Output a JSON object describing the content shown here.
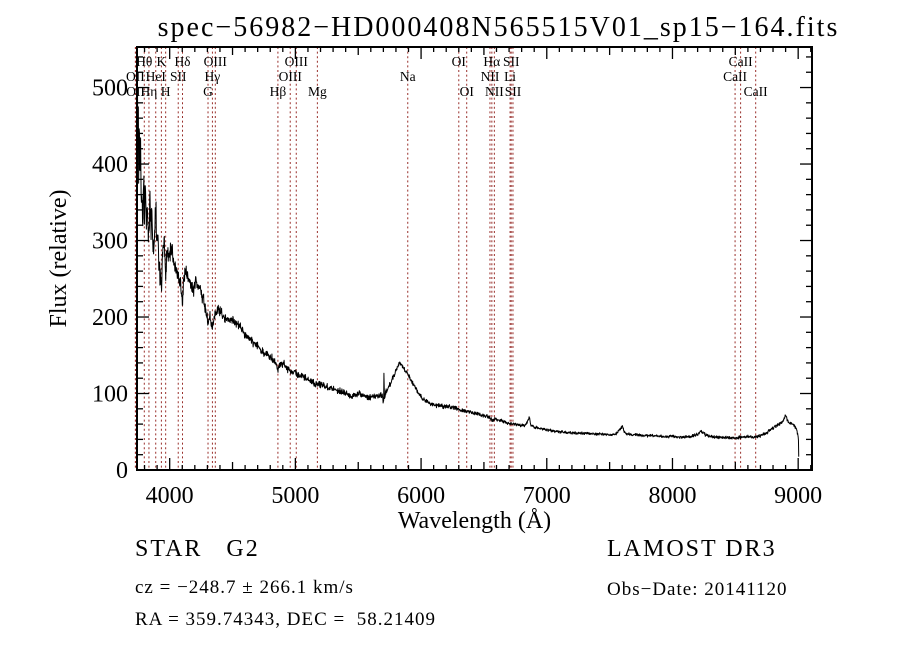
{
  "title": "spec−56982−HD000408N565515V01_sp15−164.fits",
  "footer": {
    "left": {
      "class_line": "STAR   G2",
      "cz_line": "cz = −248.7 ± 266.1 km/s",
      "radec_line": "RA = 359.74343, DEC =  58.21409"
    },
    "right": {
      "survey": "LAMOST DR3",
      "obs_date": "Obs−Date: 20141120"
    }
  },
  "chart_data": {
    "type": "line",
    "title": "spec−56982−HD000408N565515V01_sp15−164.fits",
    "xlabel": "Wavelength (Å)",
    "ylabel": "Flux (relative)",
    "xlim": [
      3740,
      9110
    ],
    "ylim": [
      0,
      553
    ],
    "xticks": [
      4000,
      5000,
      6000,
      7000,
      8000,
      9000
    ],
    "yticks": [
      0,
      100,
      200,
      300,
      400,
      500
    ],
    "x_minor_step": 100,
    "y_minor_step": 20,
    "grid": false,
    "colors": {
      "curve": "#000000",
      "line_marker": "#992f2b",
      "frame": "#000000"
    },
    "spectral_lines": [
      {
        "label": "Hθ",
        "wavelength": 3798,
        "row": 1
      },
      {
        "label": "K",
        "wavelength": 3934,
        "row": 1
      },
      {
        "label": "Hδ",
        "wavelength": 4102,
        "row": 1
      },
      {
        "label": "OIII",
        "wavelength": 4363,
        "row": 1
      },
      {
        "label": "OIII",
        "wavelength": 5007,
        "row": 1
      },
      {
        "label": "OI",
        "wavelength": 6300,
        "row": 1
      },
      {
        "label": "Hα",
        "wavelength": 6563,
        "row": 1
      },
      {
        "label": "SII",
        "wavelength": 6717,
        "row": 1
      },
      {
        "label": "CaII",
        "wavelength": 8542,
        "row": 1
      },
      {
        "label": "OII",
        "wavelength": 3727,
        "row": 2
      },
      {
        "label": "HeI",
        "wavelength": 3889,
        "row": 2
      },
      {
        "label": "SII",
        "wavelength": 4068,
        "row": 2
      },
      {
        "label": "Hγ",
        "wavelength": 4340,
        "row": 2
      },
      {
        "label": "OIII",
        "wavelength": 4959,
        "row": 2
      },
      {
        "label": "Na",
        "wavelength": 5894,
        "row": 2
      },
      {
        "label": "NII",
        "wavelength": 6548,
        "row": 2
      },
      {
        "label": "Li",
        "wavelength": 6708,
        "row": 2
      },
      {
        "label": "CaII",
        "wavelength": 8498,
        "row": 2
      },
      {
        "label": "OII",
        "wavelength": 3729,
        "row": 3
      },
      {
        "label": "Hη",
        "wavelength": 3835,
        "row": 3
      },
      {
        "label": "H",
        "wavelength": 3968,
        "row": 3
      },
      {
        "label": "G",
        "wavelength": 4305,
        "row": 3
      },
      {
        "label": "Hβ",
        "wavelength": 4861,
        "row": 3
      },
      {
        "label": "Mg",
        "wavelength": 5175,
        "row": 3
      },
      {
        "label": "OI",
        "wavelength": 6363,
        "row": 3
      },
      {
        "label": "NII",
        "wavelength": 6583,
        "row": 3
      },
      {
        "label": "SII",
        "wavelength": 6731,
        "row": 3
      },
      {
        "label": "CaII",
        "wavelength": 8662,
        "row": 3
      }
    ],
    "spectrum": {
      "anchors": [
        [
          3742,
          210
        ],
        [
          3744,
          480
        ],
        [
          3747,
          420
        ],
        [
          3750,
          505
        ],
        [
          3753,
          380
        ],
        [
          3757,
          450
        ],
        [
          3762,
          400
        ],
        [
          3768,
          435
        ],
        [
          3774,
          350
        ],
        [
          3780,
          365
        ],
        [
          3786,
          340
        ],
        [
          3792,
          380
        ],
        [
          3798,
          330
        ],
        [
          3805,
          395
        ],
        [
          3812,
          330
        ],
        [
          3820,
          345
        ],
        [
          3828,
          310
        ],
        [
          3835,
          295
        ],
        [
          3842,
          365
        ],
        [
          3850,
          320
        ],
        [
          3858,
          340
        ],
        [
          3866,
          300
        ],
        [
          3874,
          285
        ],
        [
          3882,
          320
        ],
        [
          3890,
          340
        ],
        [
          3898,
          300
        ],
        [
          3906,
          315
        ],
        [
          3914,
          270
        ],
        [
          3922,
          255
        ],
        [
          3934,
          240
        ],
        [
          3945,
          290
        ],
        [
          3956,
          305
        ],
        [
          3968,
          250
        ],
        [
          3980,
          285
        ],
        [
          3992,
          275
        ],
        [
          4005,
          285
        ],
        [
          4020,
          290
        ],
        [
          4035,
          270
        ],
        [
          4050,
          262
        ],
        [
          4065,
          255
        ],
        [
          4080,
          248
        ],
        [
          4102,
          222
        ],
        [
          4115,
          255
        ],
        [
          4130,
          262
        ],
        [
          4150,
          252
        ],
        [
          4170,
          240
        ],
        [
          4190,
          232
        ],
        [
          4210,
          248
        ],
        [
          4230,
          242
        ],
        [
          4250,
          232
        ],
        [
          4270,
          222
        ],
        [
          4290,
          205
        ],
        [
          4305,
          192
        ],
        [
          4320,
          200
        ],
        [
          4340,
          183
        ],
        [
          4360,
          205
        ],
        [
          4380,
          212
        ],
        [
          4400,
          208
        ],
        [
          4425,
          202
        ],
        [
          4450,
          198
        ],
        [
          4475,
          192
        ],
        [
          4500,
          198
        ],
        [
          4525,
          192
        ],
        [
          4550,
          188
        ],
        [
          4575,
          183
        ],
        [
          4600,
          178
        ],
        [
          4630,
          172
        ],
        [
          4660,
          168
        ],
        [
          4690,
          163
        ],
        [
          4720,
          158
        ],
        [
          4750,
          153
        ],
        [
          4780,
          150
        ],
        [
          4810,
          148
        ],
        [
          4835,
          143
        ],
        [
          4861,
          132
        ],
        [
          4885,
          140
        ],
        [
          4910,
          138
        ],
        [
          4935,
          133
        ],
        [
          4960,
          130
        ],
        [
          4985,
          127
        ],
        [
          5010,
          126
        ],
        [
          5040,
          123
        ],
        [
          5070,
          121
        ],
        [
          5100,
          118
        ],
        [
          5130,
          116
        ],
        [
          5160,
          113
        ],
        [
          5175,
          112
        ],
        [
          5210,
          112
        ],
        [
          5240,
          110
        ],
        [
          5270,
          108
        ],
        [
          5300,
          107
        ],
        [
          5330,
          105
        ],
        [
          5360,
          103
        ],
        [
          5390,
          102
        ],
        [
          5420,
          99
        ],
        [
          5450,
          96
        ],
        [
          5480,
          99
        ],
        [
          5510,
          100
        ],
        [
          5540,
          97
        ],
        [
          5570,
          95
        ],
        [
          5600,
          95
        ],
        [
          5630,
          96
        ],
        [
          5660,
          97
        ],
        [
          5690,
          99
        ],
        [
          5702,
          88
        ],
        [
          5705,
          133
        ],
        [
          5708,
          92
        ],
        [
          5720,
          103
        ],
        [
          5750,
          111
        ],
        [
          5775,
          120
        ],
        [
          5800,
          130
        ],
        [
          5815,
          136
        ],
        [
          5830,
          141
        ],
        [
          5845,
          137
        ],
        [
          5860,
          133
        ],
        [
          5880,
          129
        ],
        [
          5894,
          126
        ],
        [
          5910,
          121
        ],
        [
          5930,
          115
        ],
        [
          5950,
          109
        ],
        [
          5970,
          103
        ],
        [
          5990,
          98
        ],
        [
          6010,
          94
        ],
        [
          6040,
          90
        ],
        [
          6070,
          87
        ],
        [
          6100,
          85
        ],
        [
          6130,
          84
        ],
        [
          6160,
          84
        ],
        [
          6190,
          83
        ],
        [
          6220,
          83
        ],
        [
          6250,
          82
        ],
        [
          6280,
          81
        ],
        [
          6300,
          79
        ],
        [
          6330,
          78
        ],
        [
          6360,
          77
        ],
        [
          6390,
          76
        ],
        [
          6420,
          75
        ],
        [
          6450,
          74
        ],
        [
          6480,
          72
        ],
        [
          6510,
          71
        ],
        [
          6540,
          69
        ],
        [
          6563,
          66
        ],
        [
          6590,
          66
        ],
        [
          6620,
          65
        ],
        [
          6650,
          64
        ],
        [
          6680,
          62
        ],
        [
          6710,
          61
        ],
        [
          6740,
          60
        ],
        [
          6770,
          59
        ],
        [
          6800,
          58
        ],
        [
          6830,
          59
        ],
        [
          6855,
          66
        ],
        [
          6862,
          69
        ],
        [
          6870,
          60
        ],
        [
          6900,
          56
        ],
        [
          6930,
          55
        ],
        [
          6960,
          54
        ],
        [
          6990,
          53
        ],
        [
          7020,
          52
        ],
        [
          7060,
          51
        ],
        [
          7100,
          50
        ],
        [
          7150,
          49
        ],
        [
          7200,
          49
        ],
        [
          7250,
          48
        ],
        [
          7300,
          48
        ],
        [
          7350,
          48
        ],
        [
          7400,
          47
        ],
        [
          7450,
          47
        ],
        [
          7500,
          46
        ],
        [
          7550,
          47
        ],
        [
          7590,
          55
        ],
        [
          7600,
          58
        ],
        [
          7615,
          50
        ],
        [
          7640,
          47
        ],
        [
          7680,
          46
        ],
        [
          7720,
          46
        ],
        [
          7760,
          45
        ],
        [
          7800,
          45
        ],
        [
          7850,
          45
        ],
        [
          7900,
          44
        ],
        [
          7950,
          44
        ],
        [
          8000,
          44
        ],
        [
          8050,
          43
        ],
        [
          8100,
          43
        ],
        [
          8150,
          44
        ],
        [
          8200,
          47
        ],
        [
          8230,
          51
        ],
        [
          8260,
          46
        ],
        [
          8300,
          44
        ],
        [
          8350,
          43
        ],
        [
          8400,
          43
        ],
        [
          8450,
          42
        ],
        [
          8500,
          42
        ],
        [
          8550,
          43
        ],
        [
          8600,
          44
        ],
        [
          8662,
          43
        ],
        [
          8700,
          45
        ],
        [
          8740,
          48
        ],
        [
          8780,
          52
        ],
        [
          8820,
          57
        ],
        [
          8860,
          61
        ],
        [
          8885,
          65
        ],
        [
          8900,
          72
        ],
        [
          8915,
          64
        ],
        [
          8930,
          62
        ],
        [
          8950,
          61
        ],
        [
          8970,
          58
        ],
        [
          8985,
          55
        ],
        [
          8995,
          48
        ],
        [
          9002,
          40
        ],
        [
          9006,
          2
        ]
      ],
      "noise_segments": [
        [
          3740,
          3800,
          34
        ],
        [
          3800,
          3900,
          26
        ],
        [
          3900,
          4000,
          20
        ],
        [
          4000,
          4200,
          13
        ],
        [
          4200,
          4400,
          10
        ],
        [
          4400,
          4700,
          7
        ],
        [
          4700,
          5000,
          6
        ],
        [
          5000,
          5400,
          5
        ],
        [
          5400,
          5800,
          4.5
        ],
        [
          5800,
          6200,
          3.5
        ],
        [
          6200,
          6600,
          3
        ],
        [
          6600,
          7200,
          2.4
        ],
        [
          7200,
          8000,
          2.2
        ],
        [
          8000,
          8600,
          2.4
        ],
        [
          8600,
          9010,
          2.6
        ]
      ],
      "noise_seed": 1337,
      "sample_step": 2.2
    }
  }
}
